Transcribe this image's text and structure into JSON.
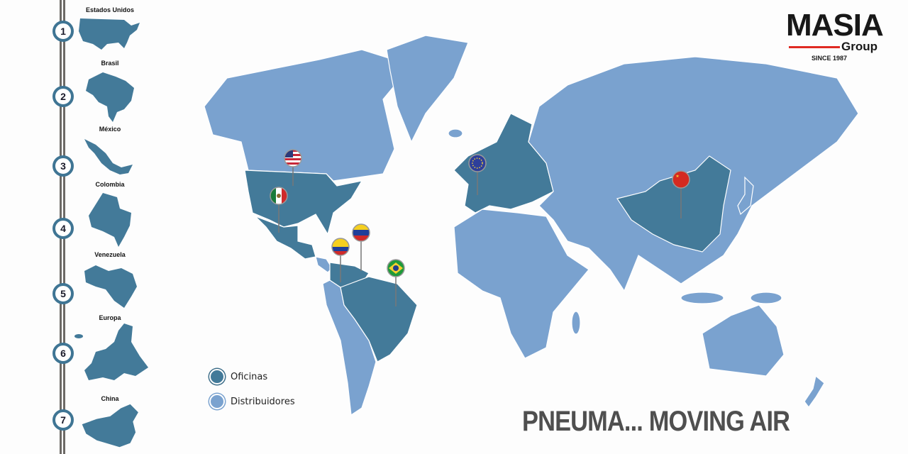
{
  "logo": {
    "name": "MASIA",
    "sub": "Group",
    "since": "SINCE 1987",
    "accent": "#e02a22"
  },
  "colors": {
    "oficinas": "#437a99",
    "distribuidores": "#7aa2cf"
  },
  "steps": [
    {
      "number": "1",
      "label": "Estados Unidos"
    },
    {
      "number": "2",
      "label": "Brasil"
    },
    {
      "number": "3",
      "label": "México"
    },
    {
      "number": "4",
      "label": "Colombia"
    },
    {
      "number": "5",
      "label": "Venezuela"
    },
    {
      "number": "6",
      "label": "Europa"
    },
    {
      "number": "7",
      "label": "China"
    }
  ],
  "legend": {
    "oficinas": "Oficinas",
    "distribuidores": "Distribuidores"
  },
  "pins": [
    "usa-flag",
    "mexico-flag",
    "colombia-flag",
    "venezuela-flag",
    "brazil-flag",
    "eu-flag",
    "china-flag"
  ],
  "tagline": "PNEUMA... MOVING AIR"
}
